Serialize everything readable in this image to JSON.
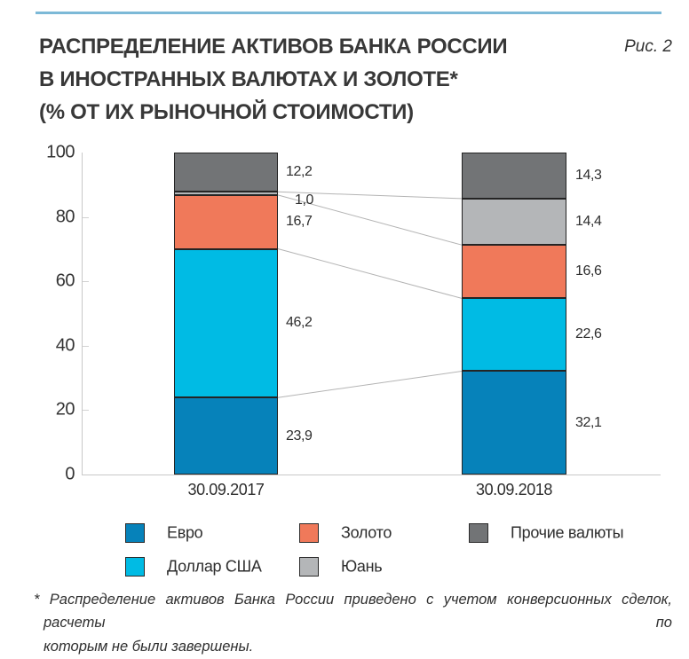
{
  "page": {
    "fig_label": "Рис. 2",
    "title_lines": [
      "РАСПРЕДЕЛЕНИЕ АКТИВОВ БАНКА РОССИИ",
      "В ИНОСТРАННЫХ ВАЛЮТАХ И ЗОЛОТЕ*",
      "(% ОТ ИХ РЫНОЧНОЙ СТОИМОСТИ)"
    ],
    "footnote_line1": "* Распределение активов Банка России приведено с учетом конверсионных сделок, расчеты по",
    "footnote_line2": "которым не были завершены."
  },
  "chart_data": {
    "type": "bar",
    "stacked": true,
    "title": "Распределение активов Банка России в иностранных валютах и золоте (% от их рыночной стоимости)",
    "categories": [
      "30.09.2017",
      "30.09.2018"
    ],
    "series": [
      {
        "name": "Евро",
        "color": "#0682ba",
        "values": [
          23.9,
          32.1
        ],
        "labels": [
          "23,9",
          "32,1"
        ]
      },
      {
        "name": "Доллар США",
        "color": "#00bbe4",
        "values": [
          46.2,
          22.6
        ],
        "labels": [
          "46,2",
          "22,6"
        ]
      },
      {
        "name": "Золото",
        "color": "#f0795a",
        "values": [
          16.7,
          16.6
        ],
        "labels": [
          "16,7",
          "16,6"
        ]
      },
      {
        "name": "Юань",
        "color": "#b4b6b8",
        "values": [
          1.0,
          14.4
        ],
        "labels": [
          "1,0",
          "14,4"
        ]
      },
      {
        "name": "Прочие валюты",
        "color": "#727476",
        "values": [
          12.2,
          14.3
        ],
        "labels": [
          "12,2",
          "14,3"
        ]
      }
    ],
    "xlabel": "",
    "ylabel": "",
    "ylim": [
      0,
      100
    ],
    "yticks": [
      0,
      20,
      40,
      60,
      80,
      100
    ],
    "grid": false,
    "legend_position": "bottom",
    "connectors_between_bars": true
  },
  "colors": {
    "accent_rule": "#7cb9d7",
    "axis": "#c8c8c8",
    "connector": "#b4b4b4",
    "segment_border": "#242424",
    "text": "#383838"
  }
}
